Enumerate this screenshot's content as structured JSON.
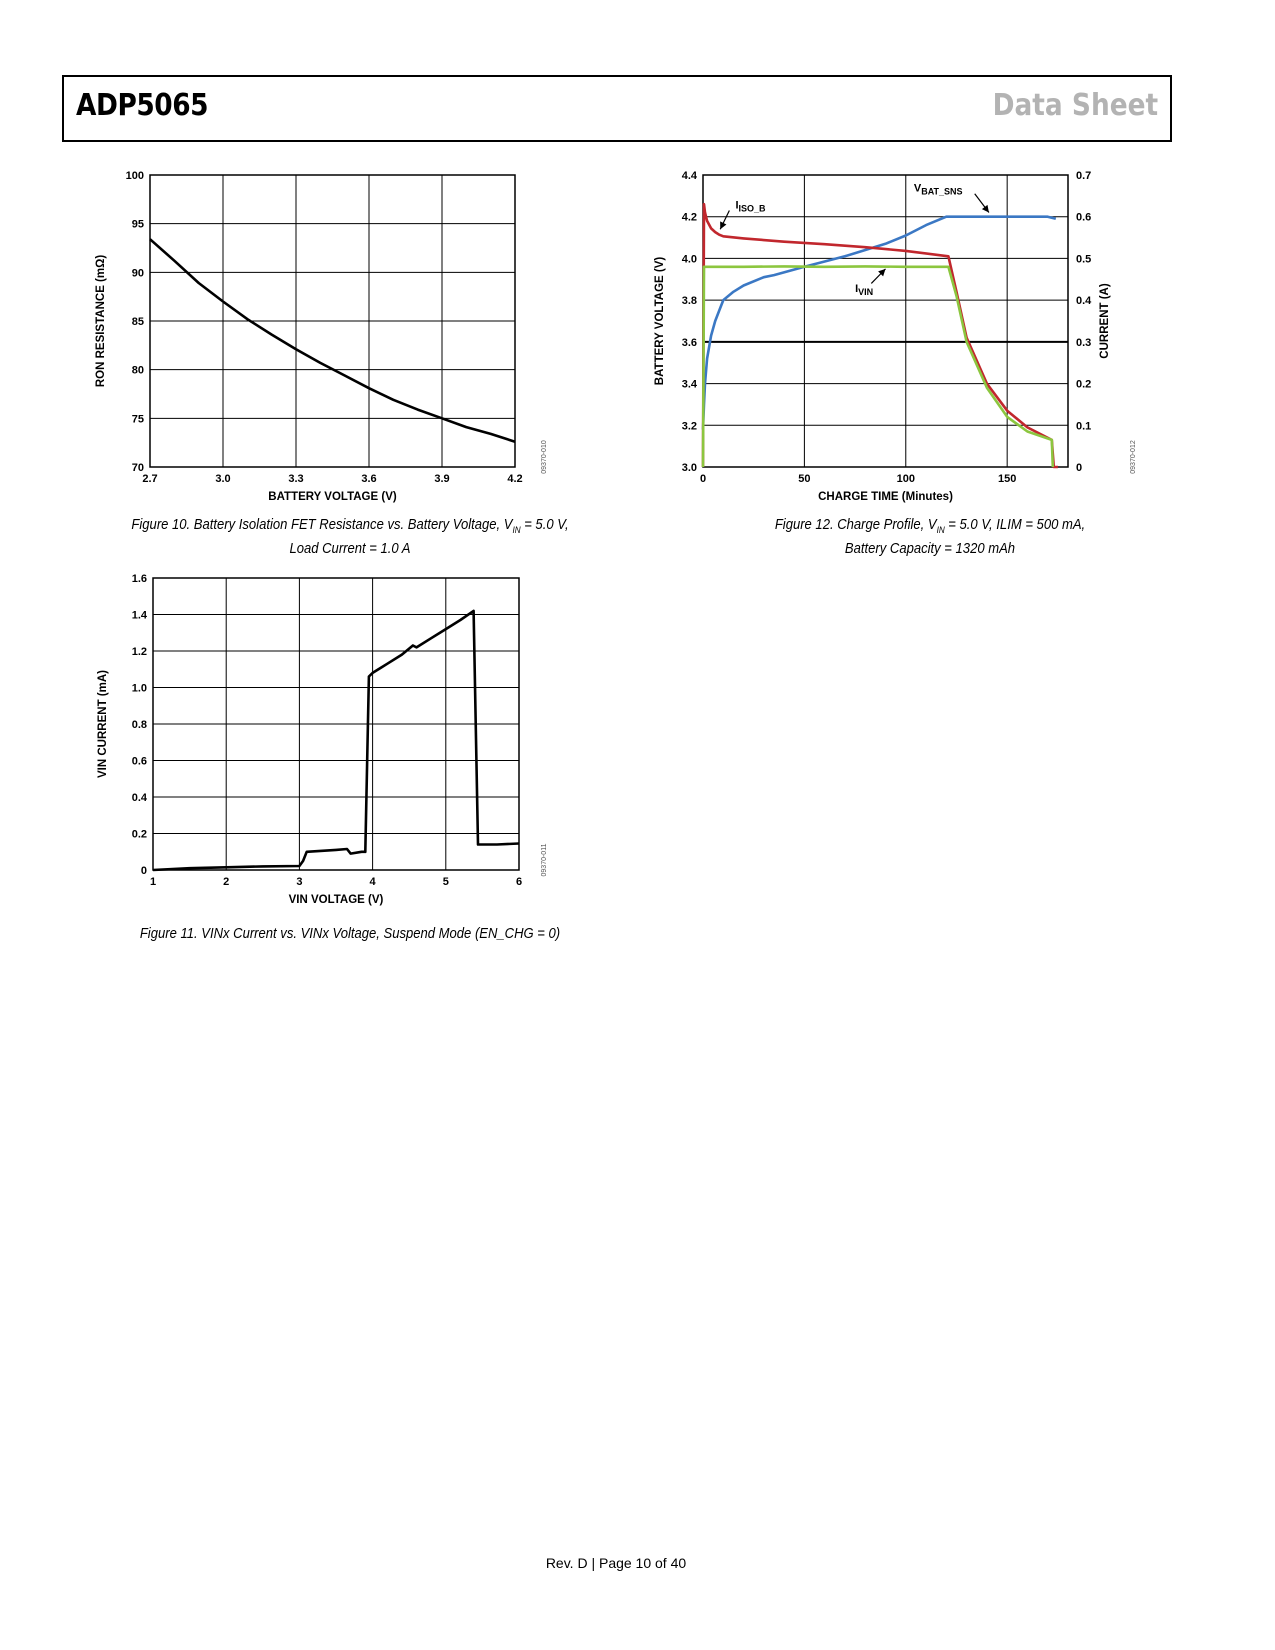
{
  "header": {
    "part": "ADP5065",
    "doc_type": "Data Sheet"
  },
  "footer": {
    "text": "Rev. D | Page 10 of 40"
  },
  "captions": {
    "fig10_line1": "Figure 10. Battery Isolation FET Resistance vs. Battery Voltage, V",
    "fig10_sub": "IN",
    "fig10_line1_end": " = 5.0 V,",
    "fig10_line2": "Load Current = 1.0 A",
    "fig11": "Figure 11. VINx Current vs. VINx Voltage, Suspend Mode (EN_CHG = 0)",
    "fig12_line1": "Figure 12. Charge Profile, V",
    "fig12_sub": "IN",
    "fig12_line1_end": " = 5.0 V, ILIM = 500 mA,",
    "fig12_line2": "Battery Capacity = 1320 mAh"
  },
  "colors": {
    "red": "#c1272d",
    "blue": "#3b78c4",
    "green": "#8cc63f",
    "black": "#000000"
  },
  "chart_data": [
    {
      "id": "fig10",
      "type": "line",
      "xlabel": "BATTERY VOLTAGE (V)",
      "ylabel": "RON RESISTANCE (mΩ)",
      "xlim": [
        2.7,
        4.2
      ],
      "ylim": [
        70,
        100
      ],
      "xticks": [
        2.7,
        3.0,
        3.3,
        3.6,
        3.9,
        4.2
      ],
      "xtick_labels": [
        "2.7",
        "3.0",
        "3.3",
        "3.6",
        "3.9",
        "4.2"
      ],
      "yticks": [
        70,
        75,
        80,
        85,
        90,
        95,
        100
      ],
      "ytick_labels": [
        "70",
        "75",
        "80",
        "85",
        "90",
        "95",
        "100"
      ],
      "grid": true,
      "code": "09370-010",
      "series": [
        {
          "color": "#000000",
          "x": [
            2.7,
            2.8,
            2.9,
            3.0,
            3.1,
            3.2,
            3.3,
            3.4,
            3.5,
            3.6,
            3.7,
            3.8,
            3.9,
            4.0,
            4.1,
            4.2
          ],
          "y": [
            93.4,
            91.2,
            88.9,
            87.0,
            85.2,
            83.6,
            82.1,
            80.7,
            79.4,
            78.1,
            76.9,
            75.9,
            75.0,
            74.1,
            73.4,
            72.6
          ]
        }
      ]
    },
    {
      "id": "fig11",
      "type": "line",
      "xlabel": "VIN VOLTAGE (V)",
      "ylabel": "VIN CURRENT (mA)",
      "xlim": [
        1,
        6
      ],
      "ylim": [
        0,
        1.6
      ],
      "xticks": [
        1,
        2,
        3,
        4,
        5,
        6
      ],
      "xtick_labels": [
        "1",
        "2",
        "3",
        "4",
        "5",
        "6"
      ],
      "yticks": [
        0,
        0.2,
        0.4,
        0.6,
        0.8,
        1.0,
        1.2,
        1.4,
        1.6
      ],
      "ytick_labels": [
        "0",
        "0.2",
        "0.4",
        "0.6",
        "0.8",
        "1.0",
        "1.2",
        "1.4",
        "1.6"
      ],
      "grid": true,
      "code": "09370-011",
      "series": [
        {
          "color": "#000000",
          "x": [
            1.0,
            1.5,
            2.0,
            2.5,
            3.0,
            3.05,
            3.1,
            3.5,
            3.65,
            3.7,
            3.85,
            3.9,
            3.95,
            4.0,
            4.2,
            4.4,
            4.55,
            4.6,
            4.8,
            5.0,
            5.2,
            5.38,
            5.44,
            5.5,
            5.7,
            6.0
          ],
          "y": [
            0.0,
            0.01,
            0.015,
            0.02,
            0.022,
            0.05,
            0.1,
            0.11,
            0.115,
            0.09,
            0.1,
            0.1,
            1.06,
            1.08,
            1.13,
            1.18,
            1.23,
            1.22,
            1.27,
            1.32,
            1.37,
            1.42,
            0.14,
            0.14,
            0.14,
            0.145
          ]
        }
      ]
    },
    {
      "id": "fig12",
      "type": "line",
      "xlabel": "CHARGE TIME (Minutes)",
      "ylabel": "BATTERY VOLTAGE (V)",
      "y2label": "CURRENT (A)",
      "xlim": [
        0,
        180
      ],
      "ylim": [
        3.0,
        4.4
      ],
      "y2lim": [
        0,
        0.7
      ],
      "xticks": [
        0,
        50,
        100,
        150
      ],
      "xtick_labels": [
        "0",
        "50",
        "100",
        "150"
      ],
      "yticks": [
        3.0,
        3.2,
        3.4,
        3.6,
        3.8,
        4.0,
        4.2,
        4.4
      ],
      "ytick_labels": [
        "3.0",
        "3.2",
        "3.4",
        "3.6",
        "3.8",
        "4.0",
        "4.2",
        "4.4"
      ],
      "y2ticks": [
        0,
        0.1,
        0.2,
        0.3,
        0.4,
        0.5,
        0.6,
        0.7
      ],
      "y2tick_labels": [
        "0",
        "0.1",
        "0.2",
        "0.3",
        "0.4",
        "0.5",
        "0.6",
        "0.7"
      ],
      "grid": true,
      "code": "09370-012",
      "annotations": {
        "iiso": {
          "main": "I",
          "sub": "ISO_B"
        },
        "vbat": {
          "main": "V",
          "sub": "BAT_SNS"
        },
        "ivin": {
          "main": "I",
          "sub": "VIN"
        }
      },
      "series": [
        {
          "name": "VBAT_SNS",
          "axis": "left",
          "color": "#3b78c4",
          "x": [
            0,
            0.5,
            1,
            2,
            4,
            6,
            8,
            10,
            15,
            20,
            30,
            35,
            50,
            70,
            90,
            100,
            110,
            120,
            135,
            150,
            165,
            170,
            174
          ],
          "y": [
            3.18,
            3.3,
            3.4,
            3.52,
            3.63,
            3.7,
            3.75,
            3.8,
            3.84,
            3.87,
            3.91,
            3.92,
            3.96,
            4.01,
            4.07,
            4.11,
            4.16,
            4.2,
            4.2,
            4.2,
            4.2,
            4.2,
            4.19
          ]
        },
        {
          "name": "IISO_B",
          "axis": "right",
          "color": "#c1272d",
          "x": [
            0,
            0.5,
            1,
            2,
            4,
            6,
            8,
            10,
            20,
            40,
            60,
            80,
            100,
            121,
            125,
            130,
            140,
            150,
            160,
            172,
            173,
            175
          ],
          "y": [
            0.0,
            0.63,
            0.61,
            0.59,
            0.572,
            0.563,
            0.557,
            0.553,
            0.548,
            0.54,
            0.534,
            0.527,
            0.518,
            0.505,
            0.42,
            0.31,
            0.2,
            0.135,
            0.095,
            0.065,
            0.0,
            0.0
          ]
        },
        {
          "name": "IVIN",
          "axis": "right",
          "color": "#8cc63f",
          "x": [
            0,
            0.5,
            2,
            20,
            40,
            60,
            80,
            100,
            121,
            125,
            130,
            140,
            150,
            160,
            172,
            172.5
          ],
          "y": [
            0.0,
            0.48,
            0.48,
            0.48,
            0.481,
            0.48,
            0.481,
            0.48,
            0.48,
            0.41,
            0.3,
            0.19,
            0.12,
            0.085,
            0.065,
            0.0
          ]
        }
      ]
    }
  ]
}
